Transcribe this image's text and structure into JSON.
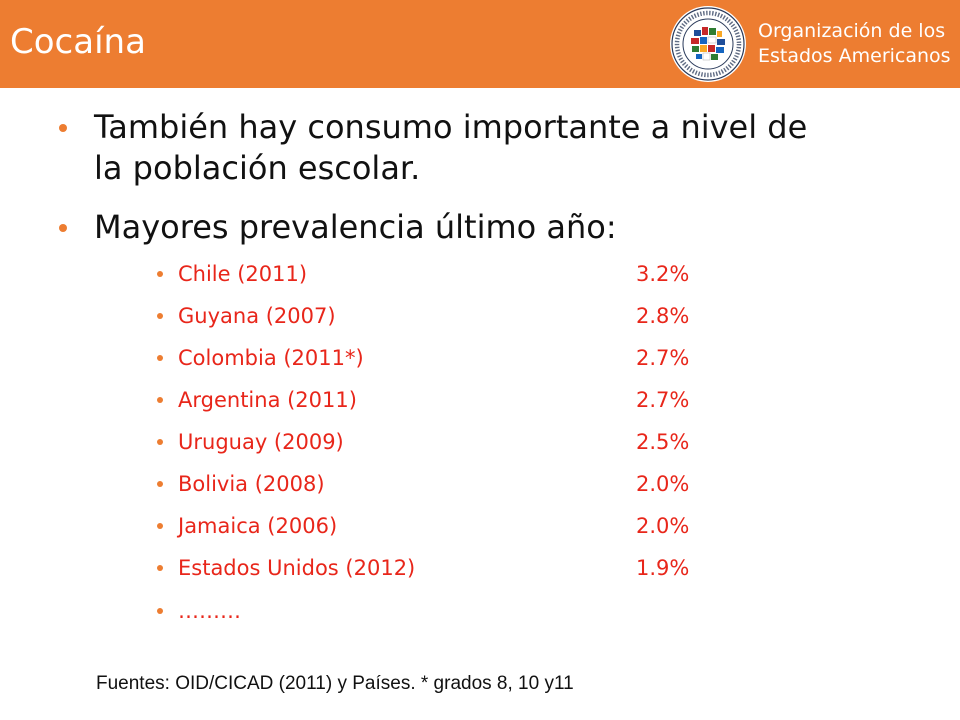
{
  "header": {
    "title": "Cocaína",
    "org_name_line1": "Organización de los",
    "org_name_line2": "Estados Americanos",
    "background_color": "#ED7D31"
  },
  "bullets": [
    {
      "line1": "También hay consumo importante a nivel de",
      "line2": "la población escolar."
    },
    {
      "line1": "Mayores prevalencia último año:"
    }
  ],
  "prevalence_list": [
    {
      "label": "Chile (2011)",
      "value": "3.2%"
    },
    {
      "label": "Guyana (2007)",
      "value": "2.8%"
    },
    {
      "label": "Colombia (2011*)",
      "value": "2.7%"
    },
    {
      "label": "Argentina (2011)",
      "value": "2.7%"
    },
    {
      "label": "Uruguay (2009)",
      "value": "2.5%"
    },
    {
      "label": "Bolivia (2008)",
      "value": "2.0%"
    },
    {
      "label": "Jamaica (2006)",
      "value": "2.0%"
    },
    {
      "label": "Estados Unidos (2012)",
      "value": "1.9%"
    },
    {
      "label": "………",
      "value": ""
    }
  ],
  "footnote": "Fuentes: OID/CICAD (2011) y Países. * grados 8, 10 y11",
  "colors": {
    "accent": "#ED7D31",
    "list_text": "#E8261A",
    "body_text": "#111111"
  }
}
